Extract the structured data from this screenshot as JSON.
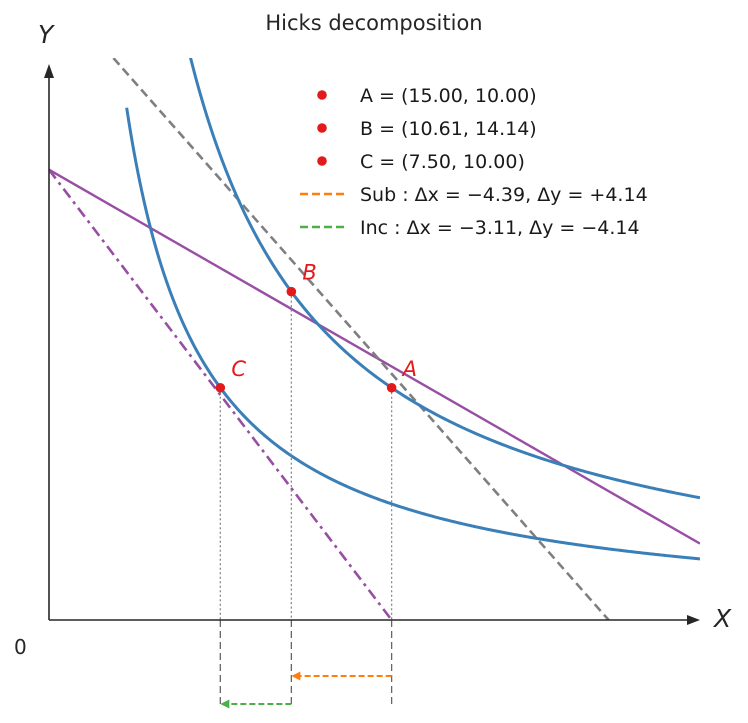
{
  "chart_data": {
    "type": "line",
    "title": "Hicks decomposition",
    "xlabel": "X",
    "ylabel": "Y",
    "origin_label": "0",
    "xlim": [
      0,
      28.5
    ],
    "ylim": [
      0,
      24.2
    ],
    "grid": false,
    "legend_position": "top-right",
    "colors": {
      "indifference": "#3a7fb8",
      "budget": "#984ea3",
      "compensated": "#7f7f7f",
      "point": "#e31a1c",
      "sub": "#ff7f0e",
      "inc": "#4daf4a",
      "axis": "#262626",
      "guide": "#888888"
    },
    "points": [
      {
        "label": "A",
        "x": 15.0,
        "y": 10.0
      },
      {
        "label": "B",
        "x": 10.61,
        "y": 14.14
      },
      {
        "label": "C",
        "x": 7.5,
        "y": 10.0
      }
    ],
    "indifference_curves": [
      {
        "k": 150,
        "x_range": [
          3.4,
          28.5
        ]
      },
      {
        "k": 75,
        "x_range": [
          3.4,
          28.5
        ]
      }
    ],
    "budget_lines": [
      {
        "style": "solid",
        "x": [
          0,
          28.5
        ],
        "y": [
          19.39,
          3.29
        ]
      },
      {
        "style": "dashdot",
        "x": [
          0,
          15.0
        ],
        "y": [
          19.39,
          0
        ]
      },
      {
        "style": "dashed",
        "x": [
          2.82,
          24.5
        ],
        "y": [
          24.2,
          0
        ]
      }
    ],
    "legend": [
      {
        "marker": "dot",
        "color": "#e31a1c",
        "text": "A = (15.00, 10.00)"
      },
      {
        "marker": "dot",
        "color": "#e31a1c",
        "text": "B = (10.61, 14.14)"
      },
      {
        "marker": "dot",
        "color": "#e31a1c",
        "text": "C = (7.50, 10.00)"
      },
      {
        "marker": "dash",
        "color": "#ff7f0e",
        "text": "Sub :  Δx = −4.39,  Δy = +4.14"
      },
      {
        "marker": "dash",
        "color": "#4daf4a",
        "text": "Inc :  Δx = −3.11,  Δy = −4.14"
      }
    ],
    "decomposition_arrows": [
      {
        "name": "substitution-effect",
        "from_x": 15.0,
        "to_x": 10.61,
        "color": "#ff7f0e"
      },
      {
        "name": "income-effect",
        "from_x": 10.61,
        "to_x": 7.5,
        "color": "#4daf4a"
      }
    ]
  }
}
